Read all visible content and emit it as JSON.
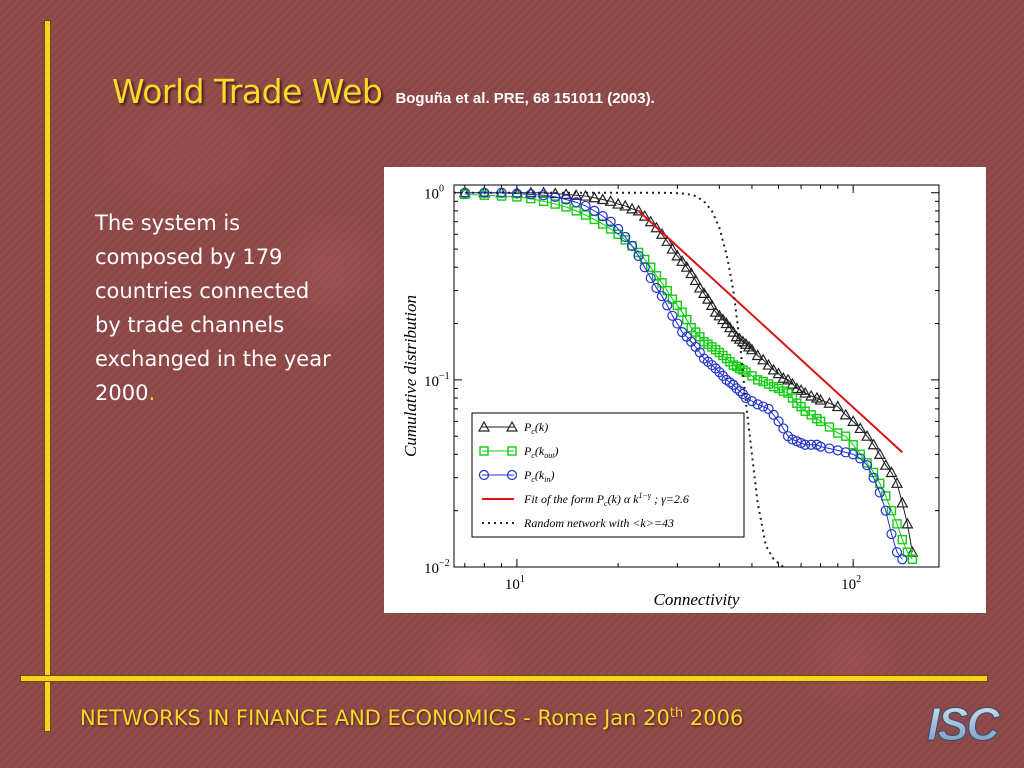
{
  "slide": {
    "title": "World Trade Web",
    "citation": "Boguña et al. PRE, 68 151011 (2003).",
    "body_text": "The system is composed by 179 countries connected by trade channels exchanged in the year 2000",
    "body_text_end": ".",
    "footer_main": "NETWORKS IN FINANCE AND ECONOMICS -  Rome Jan 20",
    "footer_sup": "th",
    "footer_year": " 2006",
    "logo_text": "ISC",
    "accent_color": "#f6d51e",
    "background_color": "#8e4848"
  },
  "chart_data": {
    "type": "line",
    "xlabel": "Connectivity",
    "ylabel": "Cumulative distribution",
    "xscale": "log",
    "yscale": "log",
    "xlim": [
      6.5,
      180
    ],
    "ylim": [
      0.01,
      1.1
    ],
    "x_ticks": [
      {
        "value": 10,
        "base": "10",
        "exp": "1"
      },
      {
        "value": 100,
        "base": "10",
        "exp": "2"
      }
    ],
    "y_ticks": [
      {
        "value": 1,
        "base": "10",
        "exp": "0"
      },
      {
        "value": 0.1,
        "base": "10",
        "exp": "−1"
      },
      {
        "value": 0.01,
        "base": "10",
        "exp": "−2"
      }
    ],
    "grid": false,
    "legend_position": "lower-left",
    "series": [
      {
        "name": "Pc(k)",
        "legend_main": "P",
        "legend_sub": "c",
        "legend_arg": "(k)",
        "color": "#222222",
        "marker": "triangle",
        "dash": "",
        "x": [
          7,
          8,
          9,
          10,
          11,
          12,
          13,
          14,
          15,
          16,
          17,
          18,
          19,
          20,
          21,
          22,
          23,
          24,
          25,
          26,
          27,
          28,
          29,
          30,
          31,
          32,
          33,
          34,
          35,
          36,
          37,
          38,
          39,
          40,
          41,
          42,
          43,
          44,
          45,
          46,
          47,
          48,
          49,
          50,
          52,
          54,
          56,
          58,
          60,
          62,
          64,
          66,
          68,
          70,
          72,
          75,
          78,
          80,
          85,
          90,
          95,
          100,
          105,
          110,
          115,
          120,
          125,
          130,
          135,
          140,
          145,
          150
        ],
        "y": [
          1.0,
          1.0,
          1.0,
          1.0,
          1.0,
          1.0,
          0.99,
          0.98,
          0.97,
          0.96,
          0.94,
          0.92,
          0.9,
          0.87,
          0.85,
          0.82,
          0.8,
          0.75,
          0.7,
          0.65,
          0.6,
          0.55,
          0.5,
          0.46,
          0.43,
          0.4,
          0.37,
          0.34,
          0.31,
          0.29,
          0.27,
          0.25,
          0.23,
          0.22,
          0.21,
          0.2,
          0.19,
          0.18,
          0.17,
          0.165,
          0.16,
          0.155,
          0.15,
          0.145,
          0.135,
          0.128,
          0.12,
          0.113,
          0.108,
          0.102,
          0.1,
          0.095,
          0.09,
          0.088,
          0.085,
          0.082,
          0.08,
          0.078,
          0.075,
          0.072,
          0.065,
          0.06,
          0.055,
          0.05,
          0.045,
          0.04,
          0.035,
          0.032,
          0.028,
          0.022,
          0.017,
          0.012
        ]
      },
      {
        "name": "Pc(kout)",
        "legend_main": "P",
        "legend_sub": "c",
        "legend_arg": "(k",
        "legend_arg_sub": "out",
        "legend_arg_end": ")",
        "color": "#11cc11",
        "marker": "square",
        "dash": "",
        "x": [
          7,
          8,
          9,
          10,
          11,
          12,
          13,
          14,
          15,
          16,
          17,
          18,
          19,
          20,
          21,
          22,
          23,
          24,
          25,
          26,
          27,
          28,
          29,
          30,
          31,
          32,
          33,
          34,
          35,
          36,
          37,
          38,
          39,
          40,
          41,
          42,
          43,
          44,
          45,
          46,
          47,
          48,
          50,
          52,
          54,
          56,
          58,
          60,
          62,
          64,
          66,
          68,
          70,
          72,
          75,
          78,
          80,
          85,
          90,
          95,
          100,
          105,
          110,
          115,
          120,
          125,
          130,
          135,
          140,
          145,
          150
        ],
        "y": [
          0.98,
          0.97,
          0.96,
          0.95,
          0.93,
          0.9,
          0.87,
          0.84,
          0.8,
          0.76,
          0.72,
          0.68,
          0.64,
          0.6,
          0.56,
          0.52,
          0.48,
          0.44,
          0.4,
          0.36,
          0.33,
          0.3,
          0.27,
          0.25,
          0.23,
          0.21,
          0.19,
          0.18,
          0.17,
          0.16,
          0.155,
          0.15,
          0.145,
          0.14,
          0.135,
          0.13,
          0.125,
          0.12,
          0.118,
          0.115,
          0.113,
          0.11,
          0.105,
          0.1,
          0.098,
          0.095,
          0.092,
          0.09,
          0.087,
          0.085,
          0.08,
          0.075,
          0.072,
          0.068,
          0.065,
          0.062,
          0.06,
          0.056,
          0.052,
          0.05,
          0.045,
          0.04,
          0.036,
          0.032,
          0.028,
          0.024,
          0.02,
          0.017,
          0.014,
          0.012,
          0.011
        ]
      },
      {
        "name": "Pc(kin)",
        "legend_main": "P",
        "legend_sub": "c",
        "legend_arg": "(k",
        "legend_arg_sub": "in",
        "legend_arg_end": ")",
        "color": "#2233cc",
        "marker": "circle",
        "dash": "",
        "x": [
          7,
          8,
          9,
          10,
          11,
          12,
          13,
          14,
          15,
          16,
          17,
          18,
          19,
          20,
          21,
          22,
          23,
          24,
          25,
          26,
          27,
          28,
          29,
          30,
          31,
          32,
          33,
          34,
          35,
          36,
          37,
          38,
          39,
          40,
          41,
          42,
          43,
          44,
          45,
          46,
          47,
          48,
          50,
          52,
          54,
          56,
          58,
          60,
          62,
          64,
          66,
          68,
          70,
          72,
          75,
          78,
          80,
          85,
          90,
          95,
          100,
          105,
          110,
          115,
          120,
          125,
          130,
          135,
          140
        ],
        "y": [
          1.0,
          1.0,
          1.0,
          0.99,
          0.98,
          0.97,
          0.95,
          0.92,
          0.89,
          0.85,
          0.8,
          0.75,
          0.7,
          0.64,
          0.58,
          0.52,
          0.46,
          0.4,
          0.35,
          0.31,
          0.28,
          0.25,
          0.22,
          0.2,
          0.18,
          0.17,
          0.16,
          0.15,
          0.14,
          0.13,
          0.125,
          0.12,
          0.115,
          0.11,
          0.105,
          0.1,
          0.097,
          0.094,
          0.09,
          0.087,
          0.084,
          0.08,
          0.077,
          0.074,
          0.072,
          0.07,
          0.065,
          0.06,
          0.055,
          0.05,
          0.048,
          0.047,
          0.046,
          0.045,
          0.045,
          0.045,
          0.044,
          0.043,
          0.042,
          0.041,
          0.04,
          0.038,
          0.035,
          0.03,
          0.025,
          0.02,
          0.015,
          0.012,
          0.011
        ]
      },
      {
        "name": "Fit of the form Pc(k) α k^(1−γ) ; γ=2.6",
        "legend_text": "Fit of the form  P",
        "legend_sub": "c",
        "legend_text_2": "(k) α k",
        "legend_sup": "1−γ",
        "legend_text_3": " ;  γ=2.6",
        "color": "#dd1111",
        "marker": "none",
        "dash": "",
        "x": [
          23,
          140
        ],
        "y": [
          0.8,
          0.041
        ]
      },
      {
        "name": "Random network with <k>=43",
        "legend_text": "Random network with <k>=43",
        "color": "#222222",
        "marker": "none",
        "dash": "2,4",
        "x": [
          6.5,
          20,
          25,
          28,
          30,
          32,
          34,
          36,
          38,
          40,
          41,
          42,
          43,
          44,
          45,
          46,
          47,
          48,
          50,
          52,
          55,
          58,
          60,
          62
        ],
        "y": [
          1.0,
          1.0,
          1.0,
          0.999,
          0.995,
          0.985,
          0.96,
          0.9,
          0.8,
          0.65,
          0.55,
          0.47,
          0.38,
          0.3,
          0.22,
          0.16,
          0.11,
          0.075,
          0.04,
          0.022,
          0.013,
          0.011,
          0.0105,
          0.01
        ]
      }
    ]
  }
}
